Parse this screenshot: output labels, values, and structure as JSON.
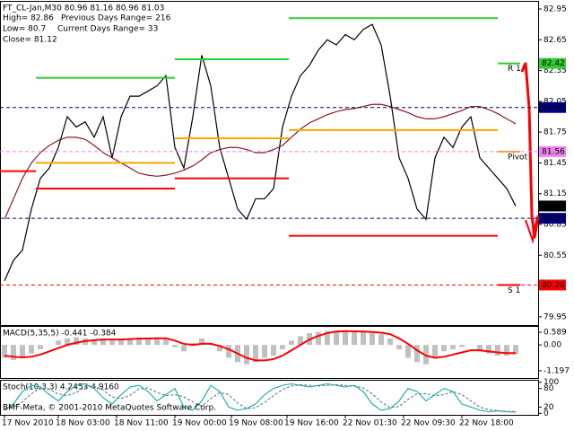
{
  "chart_data": [
    {
      "type": "line",
      "title": "FT_CL-Jan,M30  80.96 81.16 80.96 81.03",
      "annotations": [
        "High= 82.86",
        "Previous Days Range= 216",
        "Low= 80.7",
        "Current Days Range= 33",
        "Close= 81.12"
      ],
      "xlim": [
        -0.5,
        59.5
      ],
      "xticks": [
        {
          "value": 0,
          "label": "17 Nov 2010"
        },
        {
          "value": 6,
          "label": "18 Nov 03:00"
        },
        {
          "value": 12.5,
          "label": "18 Nov 11:00"
        },
        {
          "value": 19,
          "label": "19 Nov 00:00"
        },
        {
          "value": 25.3,
          "label": "19 Nov 08:00"
        },
        {
          "value": 31.5,
          "label": "19 Nov 16:00"
        },
        {
          "value": 38,
          "label": "22 Nov 01:30"
        },
        {
          "value": 44.5,
          "label": "22 Nov 09:30"
        },
        {
          "value": 51,
          "label": "22 Nov 18:00"
        }
      ],
      "ylim": [
        79.87,
        83.02
      ],
      "yticks": [
        82.95,
        82.65,
        82.35,
        82.05,
        81.75,
        81.45,
        81.15,
        80.85,
        80.55,
        80.25,
        79.95
      ],
      "series": [
        {
          "color": "#000000",
          "values": [
            80.3,
            80.5,
            80.6,
            81.0,
            81.3,
            81.4,
            81.6,
            81.9,
            81.8,
            81.85,
            81.7,
            81.9,
            81.5,
            81.9,
            82.1,
            82.1,
            82.15,
            82.2,
            82.3,
            81.6,
            81.4,
            81.9,
            82.5,
            82.2,
            81.6,
            81.3,
            81.0,
            80.9,
            81.1,
            81.1,
            81.2,
            81.8,
            82.1,
            82.3,
            82.4,
            82.55,
            82.65,
            82.6,
            82.7,
            82.65,
            82.75,
            82.8,
            82.6,
            82.1,
            81.5,
            81.3,
            81.0,
            80.9,
            81.5,
            81.7,
            81.6,
            81.8,
            81.9,
            81.5,
            81.4,
            81.3,
            81.2,
            81.03
          ]
        },
        {
          "color": "#8b1a1a",
          "values": [
            80.9,
            81.1,
            81.3,
            81.45,
            81.55,
            81.62,
            81.67,
            81.7,
            81.7,
            81.68,
            81.62,
            81.55,
            81.5,
            81.45,
            81.4,
            81.35,
            81.33,
            81.32,
            81.33,
            81.35,
            81.38,
            81.42,
            81.48,
            81.55,
            81.58,
            81.6,
            81.6,
            81.58,
            81.55,
            81.55,
            81.58,
            81.62,
            81.7,
            81.78,
            81.84,
            81.88,
            81.92,
            81.95,
            81.97,
            81.98,
            82.0,
            82.02,
            82.02,
            82.0,
            81.97,
            81.94,
            81.9,
            81.88,
            81.88,
            81.9,
            81.93,
            81.96,
            82.0,
            82.0,
            81.97,
            81.93,
            81.88,
            81.83
          ]
        }
      ],
      "levels": {
        "edges": [
          -0.5,
          3.5,
          19,
          31.7,
          55,
          57.5
        ],
        "series": [
          {
            "label": "R 1",
            "color": "#32cd32",
            "values": [
              null,
              82.28,
              82.46,
              82.86,
              82.42
            ]
          },
          {
            "label": "Pivot",
            "color": "#ffa500",
            "values": [
              null,
              81.45,
              81.69,
              81.77,
              81.56
            ]
          },
          {
            "label": "S 1",
            "color": "#ff0000",
            "values": [
              81.37,
              81.2,
              81.3,
              80.74,
              80.26
            ]
          }
        ]
      },
      "price_markers": [
        {
          "value": 82.42,
          "color": "#32cd32",
          "dash": false
        },
        {
          "value": 81.99,
          "color": "#000080",
          "dash": true
        },
        {
          "value": 81.56,
          "color": "#ee82ee",
          "dash": true
        },
        {
          "value": 81.03,
          "color": "#000000",
          "dash": false
        },
        {
          "value": 80.91,
          "color": "#000080",
          "dash": true
        },
        {
          "value": 80.26,
          "color": "#ff0000",
          "dash": true
        }
      ]
    },
    {
      "type": "bar",
      "title": "MACD(5,35,5) -0.441 -0.384",
      "ylim": [
        -1.58,
        0.84
      ],
      "yticks": [
        0.589,
        {
          "value": 0,
          "label": "0.00"
        },
        -1.197
      ],
      "series": [
        {
          "kind": "bar",
          "color": "#c0c0c0",
          "values": [
            -0.6,
            -0.7,
            -0.6,
            -0.4,
            -0.2,
            0.0,
            0.2,
            0.3,
            0.35,
            0.3,
            0.25,
            0.3,
            0.2,
            0.25,
            0.3,
            0.35,
            0.3,
            0.35,
            0.3,
            -0.1,
            -0.3,
            0.1,
            0.3,
            0.1,
            -0.3,
            -0.6,
            -0.8,
            -0.9,
            -0.8,
            -0.6,
            -0.5,
            -0.2,
            0.2,
            0.4,
            0.55,
            0.6,
            0.65,
            0.65,
            0.6,
            0.6,
            0.6,
            0.55,
            0.5,
            0.3,
            -0.2,
            -0.6,
            -0.8,
            -0.9,
            -0.6,
            -0.3,
            -0.2,
            -0.1,
            0.0,
            -0.3,
            -0.4,
            -0.5,
            -0.5,
            -0.44
          ]
        },
        {
          "kind": "line",
          "color": "#ff0000",
          "values": [
            -0.5,
            -0.55,
            -0.58,
            -0.55,
            -0.45,
            -0.3,
            -0.15,
            0.0,
            0.1,
            0.18,
            0.22,
            0.25,
            0.25,
            0.25,
            0.27,
            0.29,
            0.3,
            0.31,
            0.31,
            0.2,
            0.05,
            0.0,
            0.05,
            0.05,
            -0.05,
            -0.2,
            -0.4,
            -0.6,
            -0.72,
            -0.72,
            -0.66,
            -0.5,
            -0.25,
            0.0,
            0.25,
            0.42,
            0.55,
            0.62,
            0.64,
            0.63,
            0.62,
            0.6,
            0.57,
            0.5,
            0.3,
            0.05,
            -0.25,
            -0.5,
            -0.6,
            -0.55,
            -0.45,
            -0.35,
            -0.25,
            -0.25,
            -0.3,
            -0.35,
            -0.38,
            -0.38
          ]
        }
      ]
    },
    {
      "type": "line",
      "title": "Stoch(10,3,3) 4.2453 4.9160",
      "annotation": "BMF-Meta, © 2001-2010 MetaQuotes Software Corp.",
      "ylim": [
        -5,
        105
      ],
      "yticks": [
        100,
        80,
        20,
        0
      ],
      "series": [
        {
          "color": "#20b2aa",
          "dash": false,
          "values": [
            10,
            30,
            70,
            90,
            85,
            60,
            40,
            70,
            90,
            95,
            80,
            50,
            30,
            60,
            85,
            90,
            70,
            40,
            60,
            80,
            20,
            10,
            40,
            90,
            70,
            20,
            10,
            15,
            30,
            60,
            80,
            90,
            95,
            90,
            85,
            90,
            95,
            90,
            85,
            90,
            70,
            30,
            10,
            15,
            40,
            80,
            70,
            40,
            60,
            80,
            70,
            30,
            20,
            10,
            5,
            8,
            5,
            4
          ]
        },
        {
          "color": "#708090",
          "dash": true,
          "values": [
            15,
            20,
            37,
            63,
            82,
            78,
            62,
            57,
            67,
            85,
            88,
            75,
            53,
            47,
            58,
            78,
            82,
            67,
            57,
            60,
            53,
            37,
            23,
            47,
            67,
            60,
            33,
            15,
            18,
            35,
            57,
            77,
            88,
            92,
            90,
            88,
            90,
            92,
            90,
            88,
            82,
            63,
            37,
            18,
            22,
            45,
            63,
            63,
            57,
            60,
            70,
            60,
            40,
            20,
            12,
            8,
            6,
            5
          ]
        }
      ]
    }
  ]
}
